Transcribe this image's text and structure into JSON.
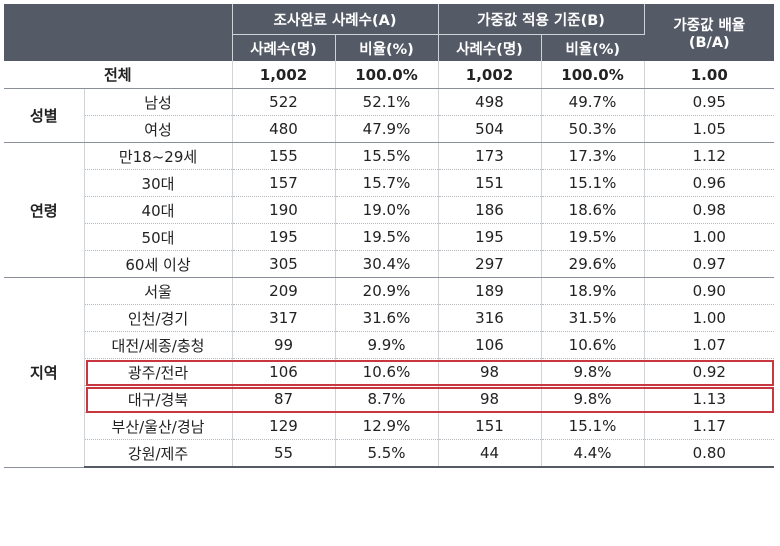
{
  "header": {
    "group_a": "조사완료 사례수(A)",
    "group_b": "가중값 적용 기준(B)",
    "ratio": "가중값 배율",
    "ratio_sub": "(B/A)",
    "count": "사례수(명)",
    "percent": "비율(%)"
  },
  "total": {
    "label": "전체",
    "a_n": "1,002",
    "a_pct": "100.0%",
    "b_n": "1,002",
    "b_pct": "100.0%",
    "ratio": "1.00"
  },
  "groups": [
    {
      "name": "성별",
      "rows": [
        {
          "label": "남성",
          "a_n": "522",
          "a_pct": "52.1%",
          "b_n": "498",
          "b_pct": "49.7%",
          "ratio": "0.95"
        },
        {
          "label": "여성",
          "a_n": "480",
          "a_pct": "47.9%",
          "b_n": "504",
          "b_pct": "50.3%",
          "ratio": "1.05"
        }
      ]
    },
    {
      "name": "연령",
      "rows": [
        {
          "label": "만18~29세",
          "a_n": "155",
          "a_pct": "15.5%",
          "b_n": "173",
          "b_pct": "17.3%",
          "ratio": "1.12"
        },
        {
          "label": "30대",
          "a_n": "157",
          "a_pct": "15.7%",
          "b_n": "151",
          "b_pct": "15.1%",
          "ratio": "0.96"
        },
        {
          "label": "40대",
          "a_n": "190",
          "a_pct": "19.0%",
          "b_n": "186",
          "b_pct": "18.6%",
          "ratio": "0.98"
        },
        {
          "label": "50대",
          "a_n": "195",
          "a_pct": "19.5%",
          "b_n": "195",
          "b_pct": "19.5%",
          "ratio": "1.00"
        },
        {
          "label": "60세 이상",
          "a_n": "305",
          "a_pct": "30.4%",
          "b_n": "297",
          "b_pct": "29.6%",
          "ratio": "0.97"
        }
      ]
    },
    {
      "name": "지역",
      "rows": [
        {
          "label": "서울",
          "a_n": "209",
          "a_pct": "20.9%",
          "b_n": "189",
          "b_pct": "18.9%",
          "ratio": "0.90"
        },
        {
          "label": "인천/경기",
          "a_n": "317",
          "a_pct": "31.6%",
          "b_n": "316",
          "b_pct": "31.5%",
          "ratio": "1.00"
        },
        {
          "label": "대전/세종/충청",
          "a_n": "99",
          "a_pct": "9.9%",
          "b_n": "106",
          "b_pct": "10.6%",
          "ratio": "1.07"
        },
        {
          "label": "광주/전라",
          "a_n": "106",
          "a_pct": "10.6%",
          "b_n": "98",
          "b_pct": "9.8%",
          "ratio": "0.92",
          "highlight": true
        },
        {
          "label": "대구/경북",
          "a_n": "87",
          "a_pct": "8.7%",
          "b_n": "98",
          "b_pct": "9.8%",
          "ratio": "1.13",
          "highlight": true
        },
        {
          "label": "부산/울산/경남",
          "a_n": "129",
          "a_pct": "12.9%",
          "b_n": "151",
          "b_pct": "15.1%",
          "ratio": "1.17"
        },
        {
          "label": "강원/제주",
          "a_n": "55",
          "a_pct": "5.5%",
          "b_n": "44",
          "b_pct": "4.4%",
          "ratio": "0.80"
        }
      ]
    }
  ],
  "colors": {
    "header_bg": "#545a66",
    "highlight": "#c8373f"
  }
}
